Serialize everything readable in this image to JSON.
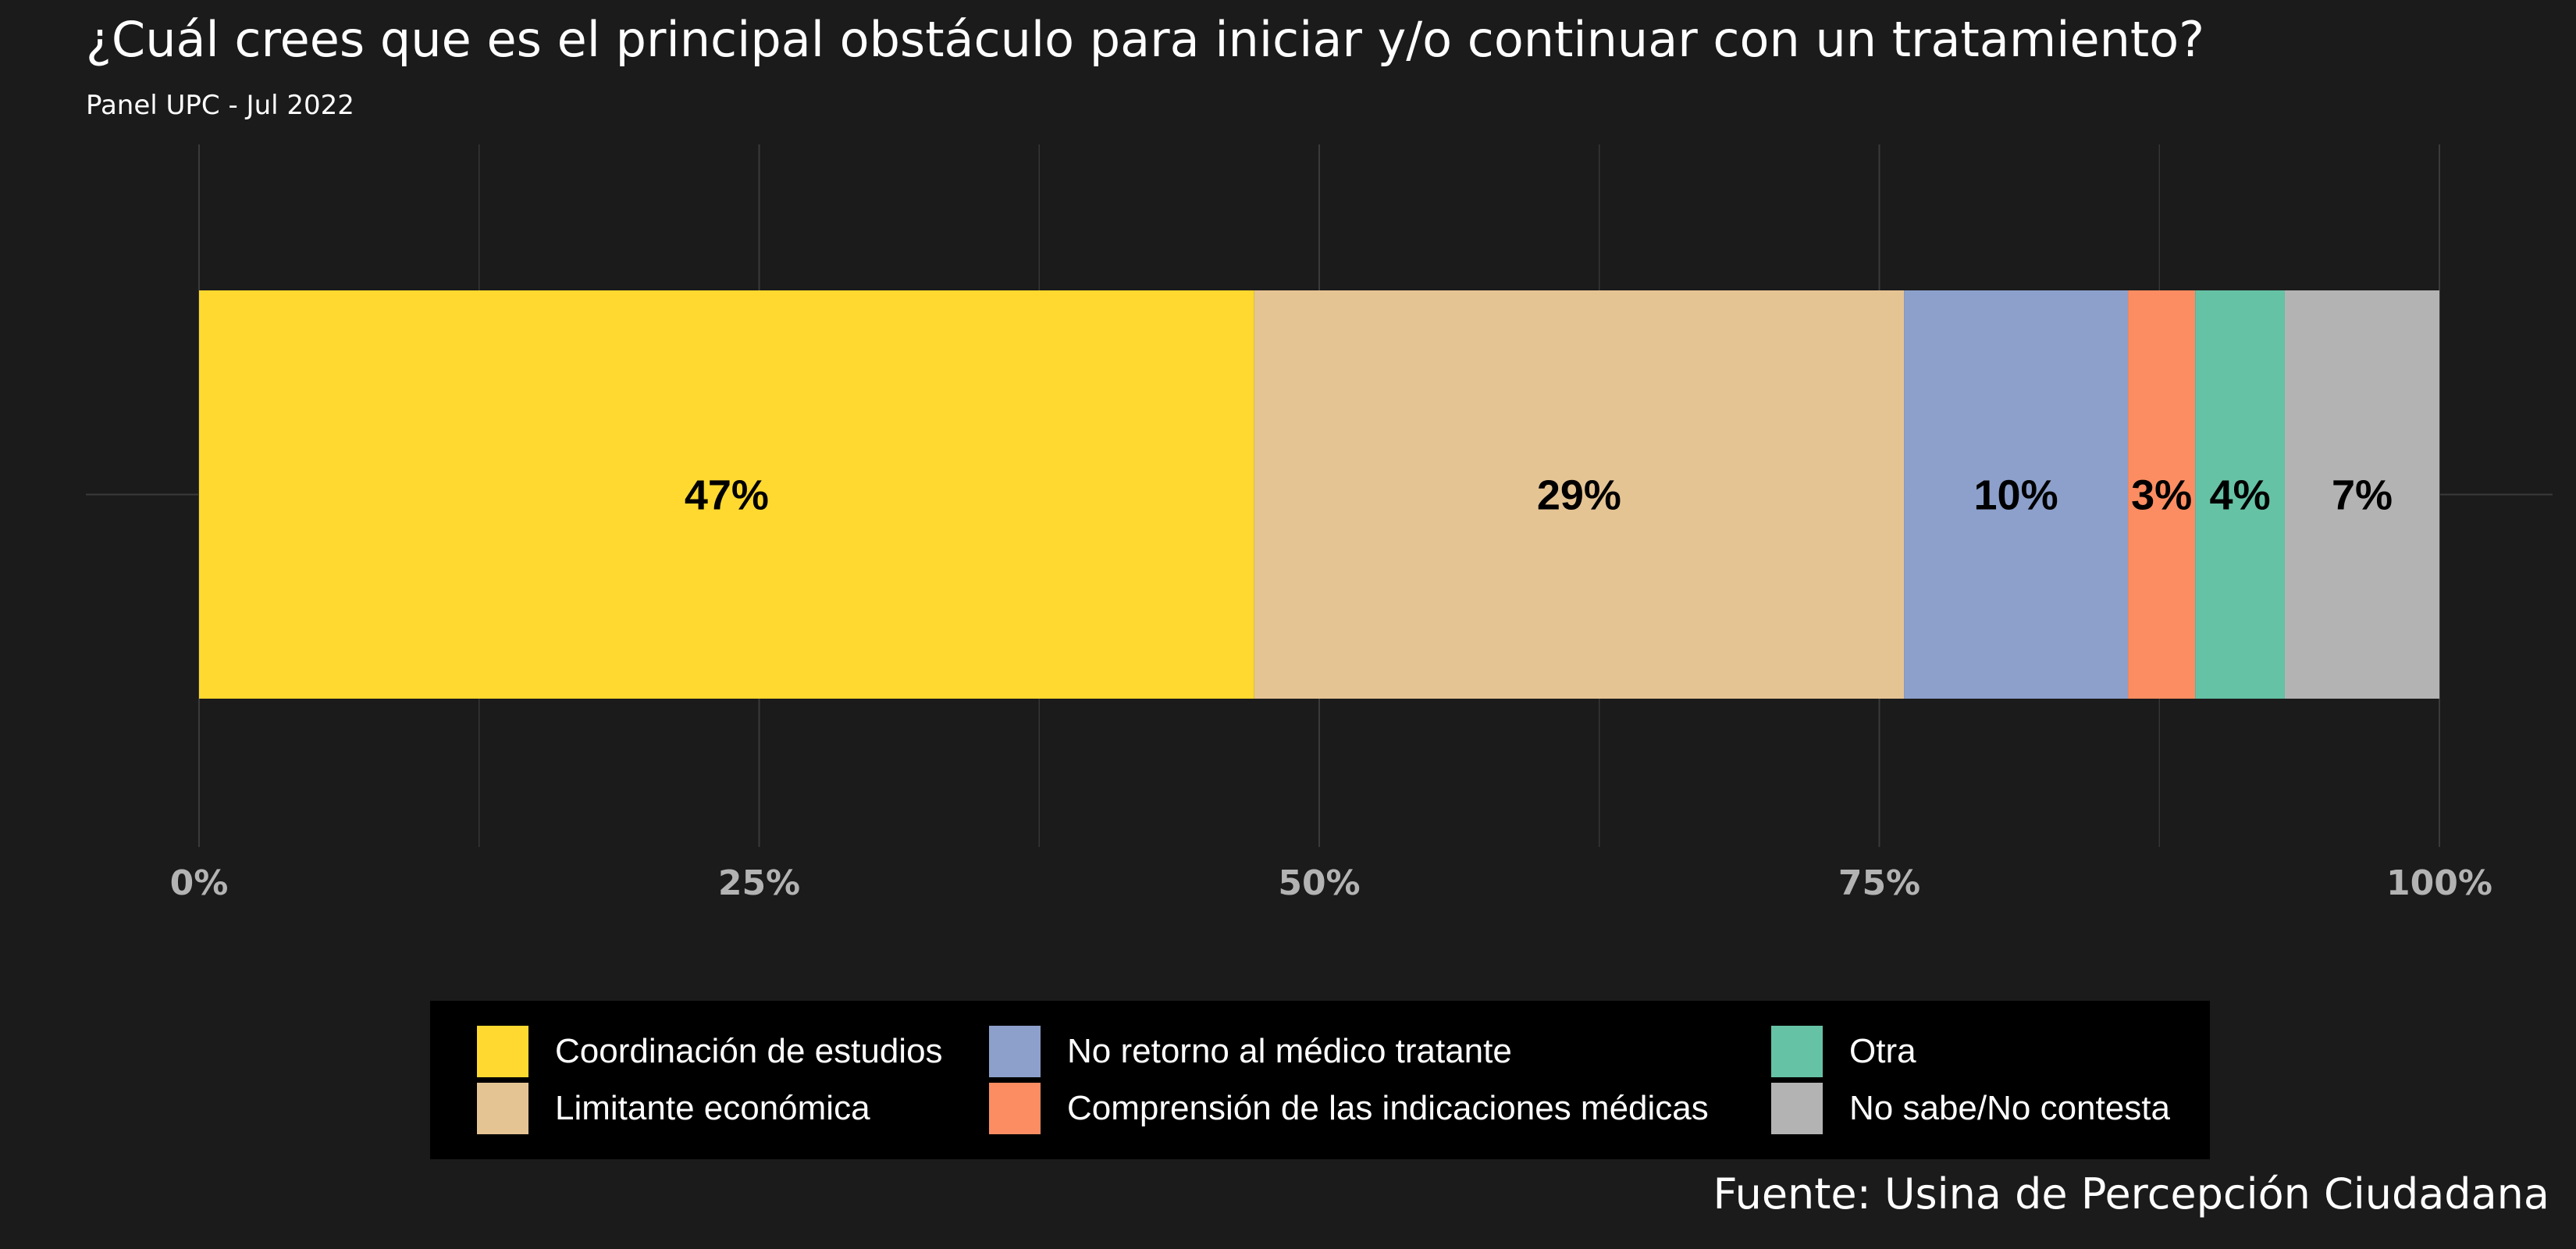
{
  "chart_data": {
    "type": "bar",
    "orientation": "horizontal-stacked-100",
    "title": "¿Cuál crees que es el principal obstáculo para iniciar y/o continuar con un tratamiento?",
    "subtitle": "Panel UPC - Jul 2022",
    "caption": "Fuente: Usina de Percepción Ciudadana",
    "xlim": [
      0,
      100
    ],
    "x_ticks": [
      "0%",
      "25%",
      "50%",
      "75%",
      "100%"
    ],
    "grid": true,
    "legend_position": "bottom",
    "series": [
      {
        "name": "Coordinación de estudios",
        "value": 47.1,
        "label": "47%",
        "color": "#FFD92F"
      },
      {
        "name": "Limitante económica",
        "value": 29.0,
        "label": "29%",
        "color": "#E5C494"
      },
      {
        "name": "No retorno al médico tratante",
        "value": 10.0,
        "label": "10%",
        "color": "#8DA0CB"
      },
      {
        "name": "Comprensión de las indicaciones médicas",
        "value": 3.0,
        "label": "3%",
        "color": "#FC8D62"
      },
      {
        "name": "Otra",
        "value": 4.0,
        "label": "4%",
        "color": "#66C2A5"
      },
      {
        "name": "No sabe/No contesta",
        "value": 6.9,
        "label": "7%",
        "color": "#B3B3B3"
      }
    ],
    "legend_order": [
      "Coordinación de estudios",
      "Limitante económica",
      "No retorno al médico tratante",
      "Comprensión de las indicaciones médicas",
      "Otra",
      "No sabe/No contesta"
    ]
  },
  "colors": {
    "background": "#1b1b1b",
    "grid": "#3a3a3a",
    "tick_text": "#b3b3b3",
    "title_text": "#ffffff",
    "legend_background": "#000000"
  }
}
